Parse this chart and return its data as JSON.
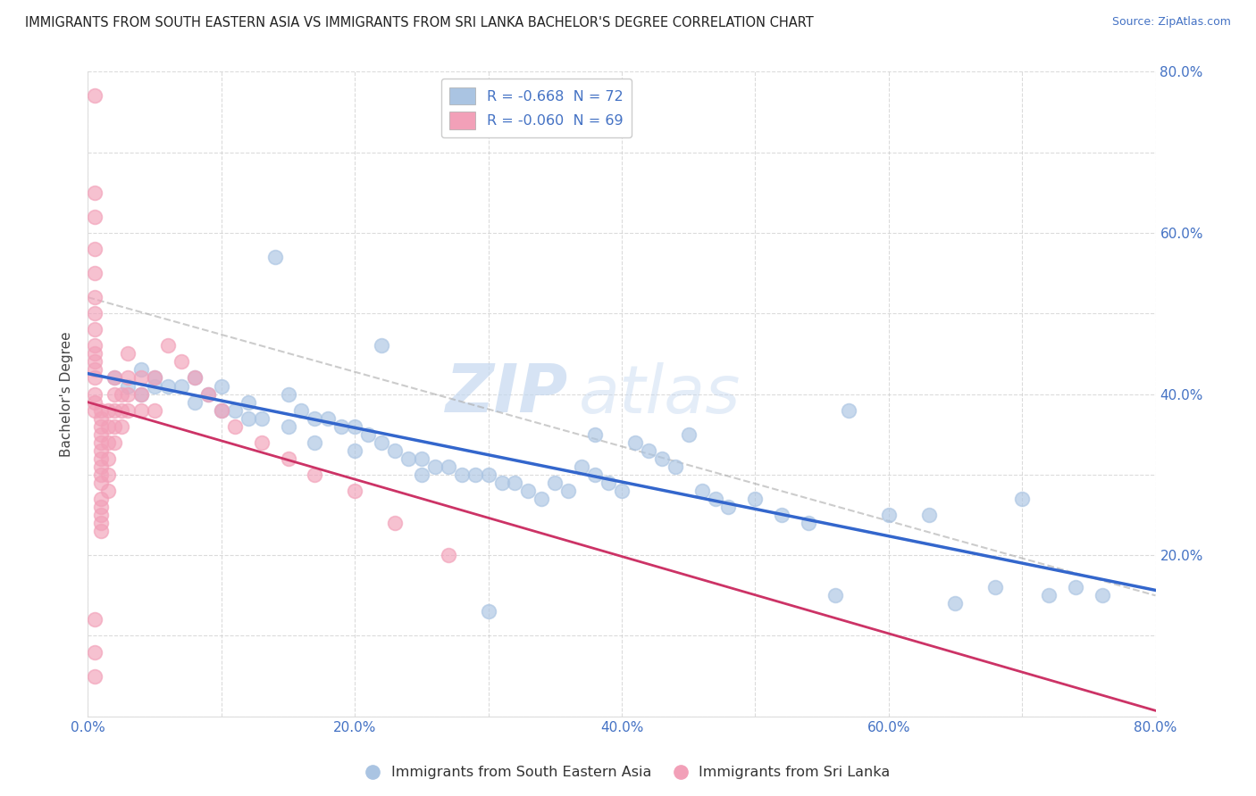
{
  "title": "IMMIGRANTS FROM SOUTH EASTERN ASIA VS IMMIGRANTS FROM SRI LANKA BACHELOR'S DEGREE CORRELATION CHART",
  "source": "Source: ZipAtlas.com",
  "ylabel": "Bachelor's Degree",
  "xlim": [
    0,
    0.8
  ],
  "ylim": [
    0,
    0.8
  ],
  "legend1_label": "R = -0.668  N = 72",
  "legend2_label": "R = -0.060  N = 69",
  "legend_series1": "Immigrants from South Eastern Asia",
  "legend_series2": "Immigrants from Sri Lanka",
  "color_blue": "#aac4e2",
  "color_pink": "#f2a0b8",
  "line_blue": "#3366cc",
  "line_pink": "#cc3366",
  "line_gray": "#aaaaaa",
  "watermark_zip": "ZIP",
  "watermark_atlas": "atlas",
  "r1": -0.668,
  "n1": 72,
  "r2": -0.06,
  "n2": 69,
  "blue_x": [
    0.02,
    0.03,
    0.04,
    0.04,
    0.05,
    0.05,
    0.06,
    0.07,
    0.08,
    0.08,
    0.09,
    0.1,
    0.1,
    0.11,
    0.12,
    0.12,
    0.13,
    0.14,
    0.15,
    0.15,
    0.16,
    0.17,
    0.17,
    0.18,
    0.19,
    0.2,
    0.2,
    0.21,
    0.22,
    0.23,
    0.24,
    0.25,
    0.25,
    0.26,
    0.27,
    0.28,
    0.29,
    0.3,
    0.31,
    0.32,
    0.33,
    0.34,
    0.35,
    0.36,
    0.37,
    0.38,
    0.38,
    0.39,
    0.4,
    0.41,
    0.42,
    0.43,
    0.44,
    0.45,
    0.46,
    0.47,
    0.48,
    0.5,
    0.52,
    0.54,
    0.57,
    0.6,
    0.63,
    0.65,
    0.68,
    0.7,
    0.72,
    0.74,
    0.76,
    0.56,
    0.3,
    0.22
  ],
  "blue_y": [
    0.42,
    0.41,
    0.4,
    0.43,
    0.41,
    0.42,
    0.41,
    0.41,
    0.42,
    0.39,
    0.4,
    0.41,
    0.38,
    0.38,
    0.39,
    0.37,
    0.37,
    0.57,
    0.4,
    0.36,
    0.38,
    0.37,
    0.34,
    0.37,
    0.36,
    0.36,
    0.33,
    0.35,
    0.34,
    0.33,
    0.32,
    0.32,
    0.3,
    0.31,
    0.31,
    0.3,
    0.3,
    0.3,
    0.29,
    0.29,
    0.28,
    0.27,
    0.29,
    0.28,
    0.31,
    0.3,
    0.35,
    0.29,
    0.28,
    0.34,
    0.33,
    0.32,
    0.31,
    0.35,
    0.28,
    0.27,
    0.26,
    0.27,
    0.25,
    0.24,
    0.38,
    0.25,
    0.25,
    0.14,
    0.16,
    0.27,
    0.15,
    0.16,
    0.15,
    0.15,
    0.13,
    0.46
  ],
  "pink_x": [
    0.005,
    0.005,
    0.005,
    0.005,
    0.005,
    0.005,
    0.005,
    0.005,
    0.005,
    0.005,
    0.005,
    0.005,
    0.005,
    0.005,
    0.005,
    0.005,
    0.01,
    0.01,
    0.01,
    0.01,
    0.01,
    0.01,
    0.01,
    0.01,
    0.01,
    0.01,
    0.01,
    0.01,
    0.01,
    0.01,
    0.01,
    0.015,
    0.015,
    0.015,
    0.015,
    0.015,
    0.015,
    0.02,
    0.02,
    0.02,
    0.02,
    0.02,
    0.025,
    0.025,
    0.025,
    0.03,
    0.03,
    0.03,
    0.03,
    0.04,
    0.04,
    0.04,
    0.05,
    0.05,
    0.06,
    0.07,
    0.08,
    0.09,
    0.1,
    0.11,
    0.13,
    0.15,
    0.17,
    0.2,
    0.23,
    0.27,
    0.005,
    0.005,
    0.005
  ],
  "pink_y": [
    0.77,
    0.65,
    0.62,
    0.58,
    0.55,
    0.52,
    0.5,
    0.48,
    0.46,
    0.45,
    0.44,
    0.43,
    0.42,
    0.4,
    0.39,
    0.38,
    0.38,
    0.37,
    0.36,
    0.35,
    0.34,
    0.33,
    0.32,
    0.31,
    0.3,
    0.29,
    0.27,
    0.26,
    0.25,
    0.24,
    0.23,
    0.38,
    0.36,
    0.34,
    0.32,
    0.3,
    0.28,
    0.42,
    0.4,
    0.38,
    0.36,
    0.34,
    0.4,
    0.38,
    0.36,
    0.45,
    0.42,
    0.4,
    0.38,
    0.42,
    0.4,
    0.38,
    0.42,
    0.38,
    0.46,
    0.44,
    0.42,
    0.4,
    0.38,
    0.36,
    0.34,
    0.32,
    0.3,
    0.28,
    0.24,
    0.2,
    0.12,
    0.08,
    0.05
  ],
  "gray_line_x": [
    0.0,
    0.8
  ],
  "gray_line_y": [
    0.52,
    0.15
  ]
}
